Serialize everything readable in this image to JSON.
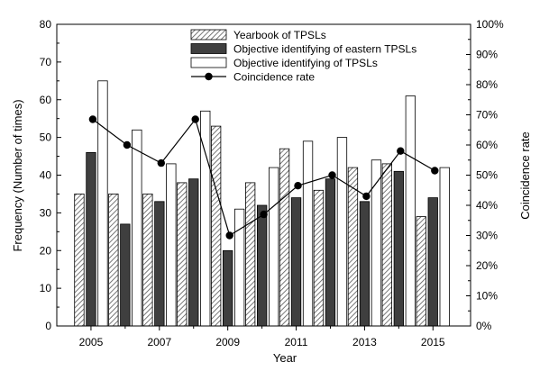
{
  "chart_data": {
    "type": "bar",
    "x": [
      2005,
      2006,
      2007,
      2008,
      2009,
      2010,
      2011,
      2012,
      2013,
      2014,
      2015
    ],
    "xticks": [
      "2005",
      "2007",
      "2009",
      "2011",
      "2013",
      "2015"
    ],
    "xlabel": "Year",
    "ylabel": "Frequency (Number of times)",
    "ylim": [
      0,
      80
    ],
    "yticks": [
      "0",
      "10",
      "20",
      "30",
      "40",
      "50",
      "60",
      "70",
      "80"
    ],
    "y2label": "Coincidence rate",
    "y2lim": [
      0,
      100
    ],
    "y2ticks": [
      "0%",
      "10%",
      "20%",
      "30%",
      "40%",
      "50%",
      "60%",
      "70%",
      "80%",
      "90%",
      "100%"
    ],
    "legend_position": "top-center",
    "series": [
      {
        "name": "Yearbook of TPSLs",
        "kind": "bar",
        "fill": "hatched",
        "values": [
          35,
          35,
          35,
          38,
          53,
          38,
          47,
          36,
          42,
          43,
          29
        ]
      },
      {
        "name": "Objective identifying of eastern TPSLs",
        "kind": "bar",
        "fill": "#3f3f3f",
        "values": [
          46,
          27,
          33,
          39,
          20,
          32,
          34,
          39,
          33,
          41,
          34
        ]
      },
      {
        "name": "Objective identifying of TPSLs",
        "kind": "bar",
        "fill": "#ffffff",
        "values": [
          65,
          52,
          43,
          57,
          31,
          42,
          49,
          50,
          44,
          61,
          42
        ]
      },
      {
        "name": "Coincidence rate",
        "kind": "line",
        "axis": "right",
        "values": [
          68.5,
          60,
          54,
          68.5,
          30,
          37,
          46.5,
          50,
          43,
          58,
          51.5
        ]
      }
    ]
  }
}
